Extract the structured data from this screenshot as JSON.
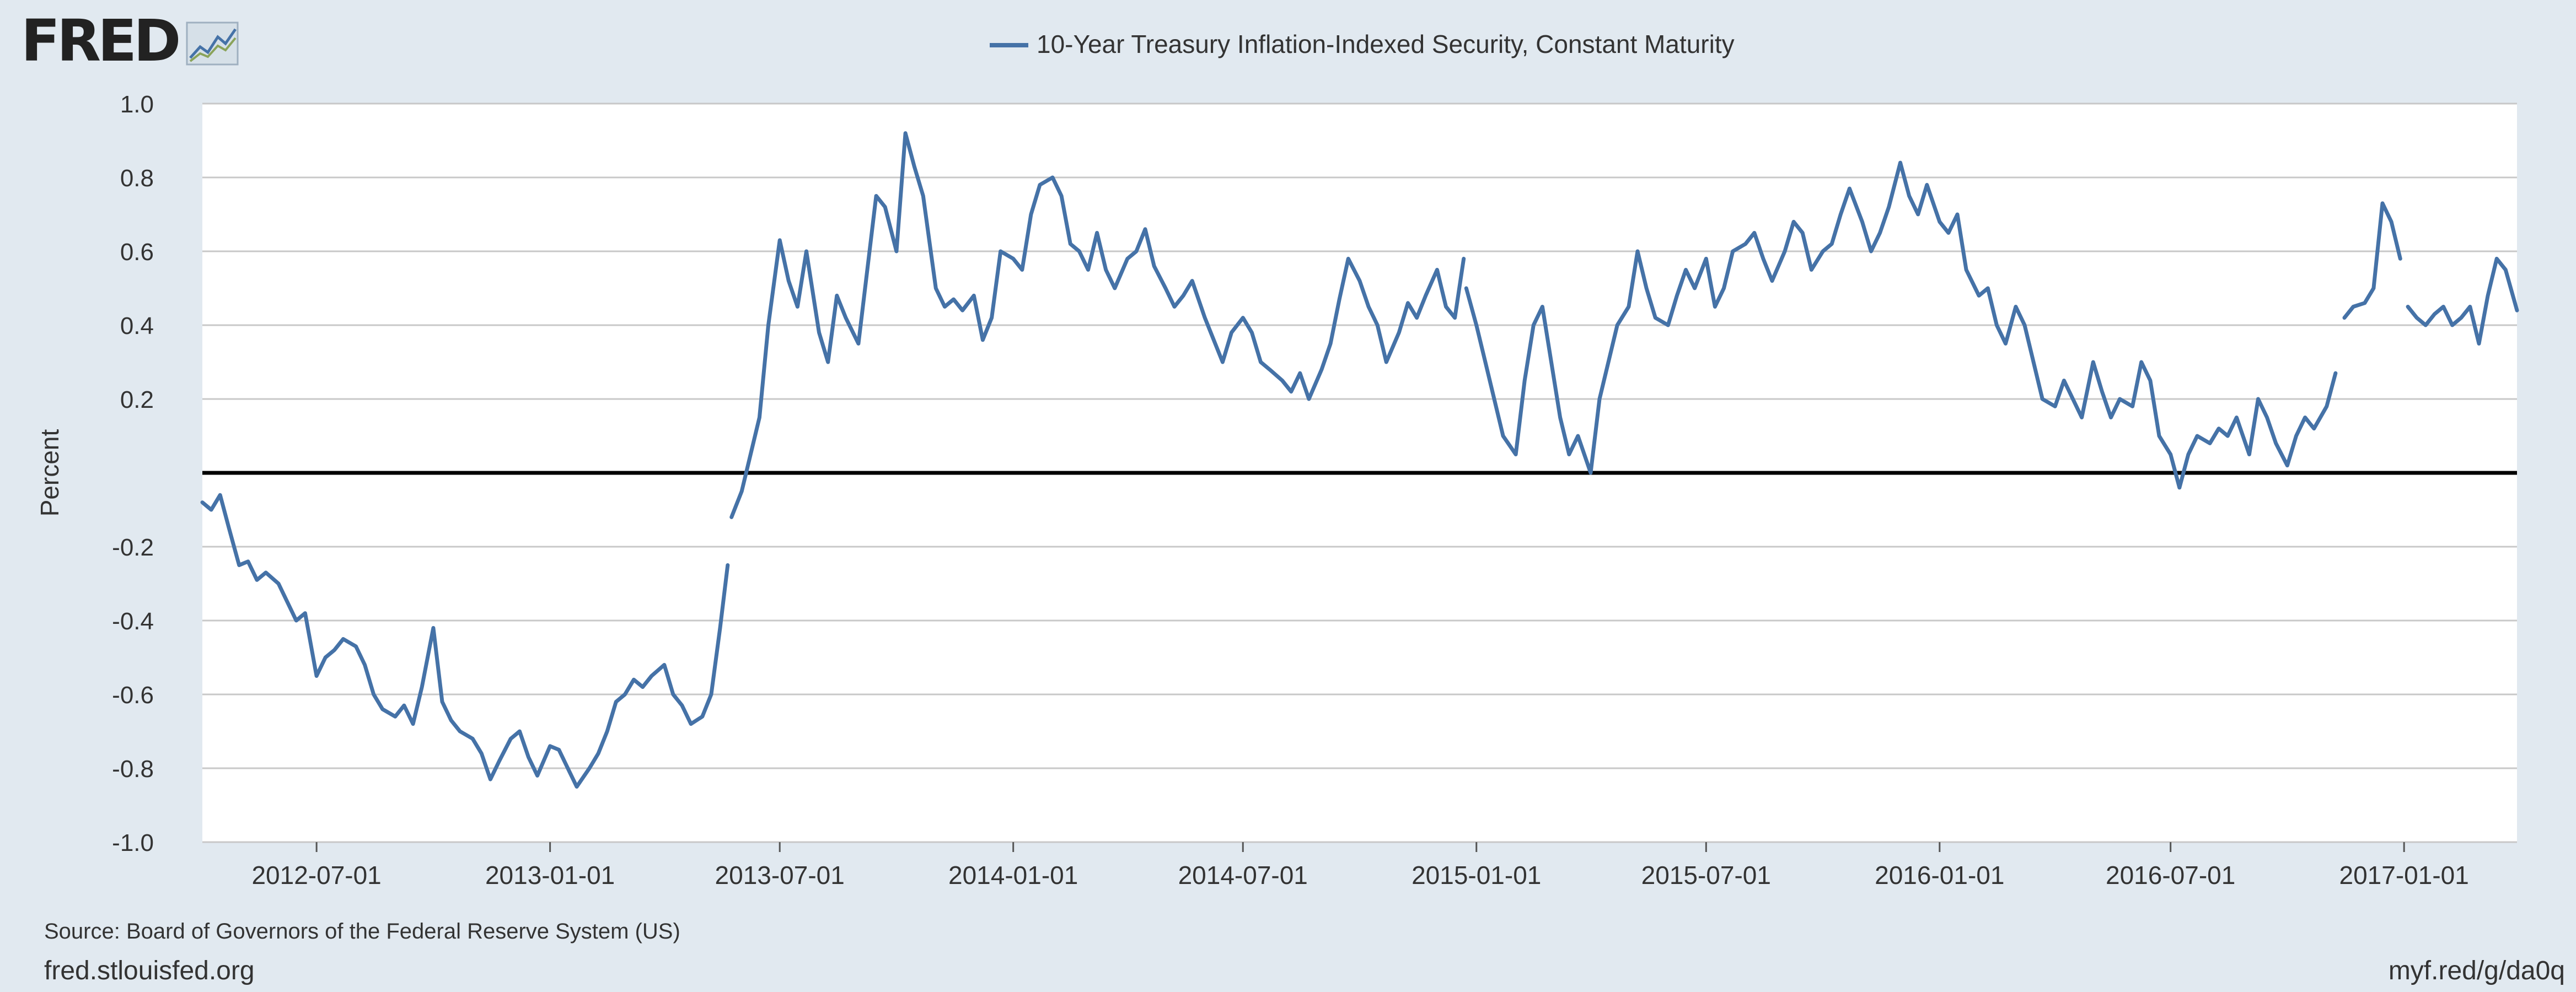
{
  "brand": {
    "logo": "FRED",
    "logo_icon": "line-chart-icon"
  },
  "footer": {
    "source": "Source: Board of Governors of the Federal Reserve System (US)",
    "site": "fred.stlouisfed.org",
    "shortlink": "myf.red/g/da0q"
  },
  "colors": {
    "background": "#e1e9f0",
    "plot_background": "#ffffff",
    "series": "#4572a7",
    "grid": "#c8c8c8",
    "zero_line": "#000000"
  },
  "chart_data": {
    "type": "line",
    "title": "",
    "ylabel": "Percent",
    "xlabel": "",
    "xlim": [
      "2012-04-02",
      "2017-03-31"
    ],
    "ylim": [
      -1.0,
      1.0
    ],
    "yticks": [
      1.0,
      0.8,
      0.6,
      0.4,
      0.2,
      -0.2,
      -0.4,
      -0.6,
      -0.8,
      -1.0
    ],
    "ytick_labels": [
      "1.0",
      "0.8",
      "0.6",
      "0.4",
      "0.2",
      "-0.2",
      "-0.4",
      "-0.6",
      "-0.8",
      "-1.0"
    ],
    "xticks": [
      "2012-07-01",
      "2013-01-01",
      "2013-07-01",
      "2014-01-01",
      "2014-07-01",
      "2015-01-01",
      "2015-07-01",
      "2016-01-01",
      "2016-07-01",
      "2017-01-01"
    ],
    "reference_line": 0,
    "grid": true,
    "legend": {
      "position": "top-center"
    },
    "series": [
      {
        "name": "10-Year Treasury Inflation-Indexed Security, Constant Maturity",
        "segments": [
          {
            "x": [
              "2012-04-02",
              "2012-04-09",
              "2012-04-16",
              "2012-04-23",
              "2012-05-01",
              "2012-05-08",
              "2012-05-15",
              "2012-05-22",
              "2012-06-01",
              "2012-06-08",
              "2012-06-15",
              "2012-06-22",
              "2012-07-01",
              "2012-07-08",
              "2012-07-15",
              "2012-07-22",
              "2012-08-01",
              "2012-08-08",
              "2012-08-15",
              "2012-08-22",
              "2012-09-01",
              "2012-09-08",
              "2012-09-15",
              "2012-09-22",
              "2012-10-01",
              "2012-10-08",
              "2012-10-15",
              "2012-10-22",
              "2012-11-01",
              "2012-11-08",
              "2012-11-15",
              "2012-11-22",
              "2012-12-01",
              "2012-12-08",
              "2012-12-15",
              "2012-12-22",
              "2013-01-01",
              "2013-01-08",
              "2013-01-15",
              "2013-01-22",
              "2013-02-01",
              "2013-02-08",
              "2013-02-15",
              "2013-02-22",
              "2013-03-01",
              "2013-03-08",
              "2013-03-15",
              "2013-03-22",
              "2013-04-01",
              "2013-04-08",
              "2013-04-15",
              "2013-04-22",
              "2013-05-01",
              "2013-05-08",
              "2013-05-15",
              "2013-05-21"
            ],
            "y": [
              -0.08,
              -0.1,
              -0.06,
              -0.15,
              -0.25,
              -0.24,
              -0.29,
              -0.27,
              -0.3,
              -0.35,
              -0.4,
              -0.38,
              -0.55,
              -0.5,
              -0.48,
              -0.45,
              -0.47,
              -0.52,
              -0.6,
              -0.64,
              -0.66,
              -0.63,
              -0.68,
              -0.58,
              -0.42,
              -0.62,
              -0.67,
              -0.7,
              -0.72,
              -0.76,
              -0.83,
              -0.78,
              -0.72,
              -0.7,
              -0.77,
              -0.82,
              -0.74,
              -0.75,
              -0.8,
              -0.85,
              -0.8,
              -0.76,
              -0.7,
              -0.62,
              -0.6,
              -0.56,
              -0.58,
              -0.55,
              -0.52,
              -0.6,
              -0.63,
              -0.68,
              -0.66,
              -0.6,
              -0.42,
              -0.25
            ]
          },
          {
            "x": [
              "2013-05-24",
              "2013-06-01",
              "2013-06-08",
              "2013-06-15",
              "2013-06-22",
              "2013-07-01",
              "2013-07-08",
              "2013-07-15",
              "2013-07-22",
              "2013-08-01",
              "2013-08-08",
              "2013-08-15",
              "2013-08-22",
              "2013-09-01",
              "2013-09-08",
              "2013-09-15",
              "2013-09-22",
              "2013-10-01",
              "2013-10-08",
              "2013-10-15",
              "2013-10-22",
              "2013-11-01",
              "2013-11-08",
              "2013-11-15",
              "2013-11-22",
              "2013-12-01",
              "2013-12-08",
              "2013-12-15",
              "2013-12-22",
              "2014-01-01",
              "2014-01-08",
              "2014-01-15",
              "2014-01-22",
              "2014-02-01",
              "2014-02-08",
              "2014-02-15",
              "2014-02-22",
              "2014-03-01",
              "2014-03-08",
              "2014-03-15",
              "2014-03-22",
              "2014-04-01",
              "2014-04-08",
              "2014-04-15",
              "2014-04-22",
              "2014-05-01",
              "2014-05-08",
              "2014-05-15",
              "2014-05-22",
              "2014-06-01",
              "2014-06-08",
              "2014-06-15",
              "2014-06-22",
              "2014-07-01",
              "2014-07-08",
              "2014-07-15",
              "2014-07-22",
              "2014-08-01",
              "2014-08-08",
              "2014-08-15",
              "2014-08-22",
              "2014-09-01",
              "2014-09-08",
              "2014-09-15",
              "2014-09-22",
              "2014-10-01",
              "2014-10-08",
              "2014-10-15",
              "2014-10-22",
              "2014-11-01",
              "2014-11-08",
              "2014-11-15",
              "2014-11-22",
              "2014-12-01",
              "2014-12-08",
              "2014-12-15",
              "2014-12-22"
            ],
            "y": [
              -0.12,
              -0.05,
              0.05,
              0.15,
              0.4,
              0.63,
              0.52,
              0.45,
              0.6,
              0.38,
              0.3,
              0.48,
              0.42,
              0.35,
              0.55,
              0.75,
              0.72,
              0.6,
              0.92,
              0.83,
              0.75,
              0.5,
              0.45,
              0.47,
              0.44,
              0.48,
              0.36,
              0.42,
              0.6,
              0.58,
              0.55,
              0.7,
              0.78,
              0.8,
              0.75,
              0.62,
              0.6,
              0.55,
              0.65,
              0.55,
              0.5,
              0.58,
              0.6,
              0.66,
              0.56,
              0.5,
              0.45,
              0.48,
              0.52,
              0.42,
              0.36,
              0.3,
              0.38,
              0.42,
              0.38,
              0.3,
              0.28,
              0.25,
              0.22,
              0.27,
              0.2,
              0.28,
              0.35,
              0.47,
              0.58,
              0.52,
              0.45,
              0.4,
              0.3,
              0.38,
              0.46,
              0.42,
              0.48,
              0.55,
              0.45,
              0.42,
              0.58
            ]
          },
          {
            "x": [
              "2014-12-24",
              "2015-01-01",
              "2015-01-08",
              "2015-01-15",
              "2015-01-22",
              "2015-02-01",
              "2015-02-08",
              "2015-02-15",
              "2015-02-22",
              "2015-03-01",
              "2015-03-08",
              "2015-03-15",
              "2015-03-22",
              "2015-04-01",
              "2015-04-08",
              "2015-04-15",
              "2015-04-22",
              "2015-05-01",
              "2015-05-08",
              "2015-05-15",
              "2015-05-22",
              "2015-06-01",
              "2015-06-08",
              "2015-06-15",
              "2015-06-22",
              "2015-07-01",
              "2015-07-08",
              "2015-07-15",
              "2015-07-22",
              "2015-08-01",
              "2015-08-08",
              "2015-08-15",
              "2015-08-22",
              "2015-09-01",
              "2015-09-08",
              "2015-09-15",
              "2015-09-22",
              "2015-10-01",
              "2015-10-08",
              "2015-10-15",
              "2015-10-22",
              "2015-11-01",
              "2015-11-08",
              "2015-11-15",
              "2015-11-22",
              "2015-12-01",
              "2015-12-08",
              "2015-12-15",
              "2015-12-22",
              "2016-01-01",
              "2016-01-08",
              "2016-01-15",
              "2016-01-22",
              "2016-02-01",
              "2016-02-08",
              "2016-02-15",
              "2016-02-22",
              "2016-03-01",
              "2016-03-08",
              "2016-03-15",
              "2016-03-22",
              "2016-04-01",
              "2016-04-08",
              "2016-04-15",
              "2016-04-22",
              "2016-05-01",
              "2016-05-08",
              "2016-05-15",
              "2016-05-22",
              "2016-06-01",
              "2016-06-08",
              "2016-06-15",
              "2016-06-22",
              "2016-07-01",
              "2016-07-08",
              "2016-07-15",
              "2016-07-22",
              "2016-08-01",
              "2016-08-08",
              "2016-08-15",
              "2016-08-22",
              "2016-09-01",
              "2016-09-08",
              "2016-09-15",
              "2016-09-22",
              "2016-10-01",
              "2016-10-08",
              "2016-10-15",
              "2016-10-22",
              "2016-11-01",
              "2016-11-08"
            ],
            "y": [
              0.5,
              0.4,
              0.3,
              0.2,
              0.1,
              0.05,
              0.25,
              0.4,
              0.45,
              0.3,
              0.15,
              0.05,
              0.1,
              0.0,
              0.2,
              0.3,
              0.4,
              0.45,
              0.6,
              0.5,
              0.42,
              0.4,
              0.48,
              0.55,
              0.5,
              0.58,
              0.45,
              0.5,
              0.6,
              0.62,
              0.65,
              0.58,
              0.52,
              0.6,
              0.68,
              0.65,
              0.55,
              0.6,
              0.62,
              0.7,
              0.77,
              0.68,
              0.6,
              0.65,
              0.72,
              0.84,
              0.75,
              0.7,
              0.78,
              0.68,
              0.65,
              0.7,
              0.55,
              0.48,
              0.5,
              0.4,
              0.35,
              0.45,
              0.4,
              0.3,
              0.2,
              0.18,
              0.25,
              0.2,
              0.15,
              0.3,
              0.22,
              0.15,
              0.2,
              0.18,
              0.3,
              0.25,
              0.1,
              0.05,
              -0.04,
              0.05,
              0.1,
              0.08,
              0.12,
              0.1,
              0.15,
              0.05,
              0.2,
              0.15,
              0.08,
              0.02,
              0.1,
              0.15,
              0.12,
              0.18,
              0.27
            ]
          },
          {
            "x": [
              "2016-11-15",
              "2016-11-22",
              "2016-12-01",
              "2016-12-08",
              "2016-12-15",
              "2016-12-22",
              "2016-12-29"
            ],
            "y": [
              0.42,
              0.45,
              0.46,
              0.5,
              0.73,
              0.68,
              0.58
            ]
          },
          {
            "x": [
              "2017-01-04",
              "2017-01-11",
              "2017-01-18",
              "2017-01-25",
              "2017-02-01",
              "2017-02-08",
              "2017-02-15",
              "2017-02-22",
              "2017-03-01",
              "2017-03-08",
              "2017-03-15",
              "2017-03-22",
              "2017-03-31"
            ],
            "y": [
              0.45,
              0.42,
              0.4,
              0.43,
              0.45,
              0.4,
              0.42,
              0.45,
              0.35,
              0.48,
              0.58,
              0.55,
              0.44
            ]
          }
        ]
      }
    ]
  }
}
